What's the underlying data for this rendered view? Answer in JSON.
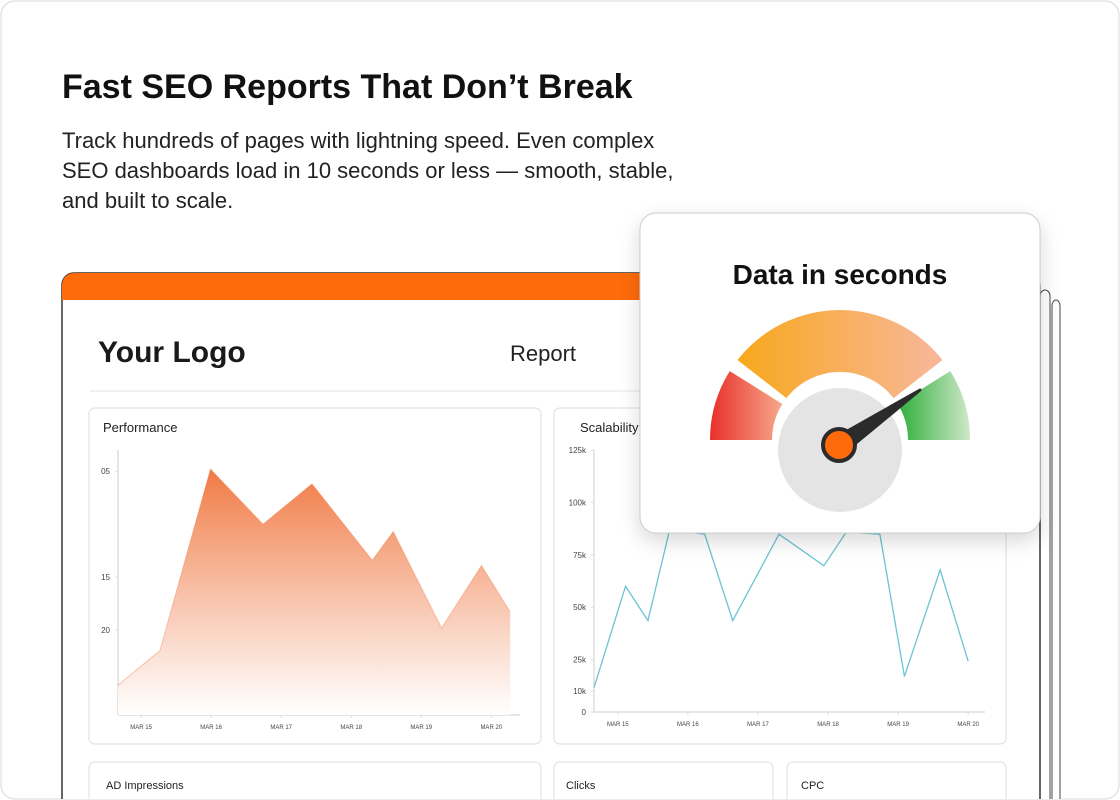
{
  "header": {
    "title": "Fast SEO Reports That Don’t Break",
    "description_lines": [
      "Track hundreds of pages with lightning speed. Even complex",
      "SEO dashboards load in 10 seconds or less — smooth, stable,",
      "and built to scale."
    ]
  },
  "dashboard": {
    "logo": "Your Logo",
    "report": "Report",
    "cards": [
      "AD Impressions",
      "Clicks",
      "CPC"
    ]
  },
  "gauge": {
    "title": "Data in seconds"
  },
  "chart_data": [
    {
      "type": "area",
      "title": "Performance",
      "color": "#f07a45",
      "x": [
        14.67,
        15.27,
        15.99,
        16.74,
        17.44,
        18.3,
        18.6,
        19.29,
        19.86,
        20.27
      ],
      "values": [
        25.2,
        21.9,
        4.8,
        10,
        6.2,
        13.4,
        10.7,
        19.8,
        13.9,
        18.3
      ],
      "xlim": [
        14.67,
        20.41
      ],
      "ylim": [
        3,
        28
      ],
      "y_inverted": true,
      "xticks": [
        {
          "value": 15,
          "label": "MAR 15"
        },
        {
          "value": 16,
          "label": "MAR 16"
        },
        {
          "value": 17,
          "label": "MAR 17"
        },
        {
          "value": 18,
          "label": "MAR 18"
        },
        {
          "value": 19,
          "label": "MAR 19"
        },
        {
          "value": 20,
          "label": "MAR 20"
        }
      ],
      "yticks": [
        {
          "value": 5,
          "label": "05"
        },
        15,
        20
      ]
    },
    {
      "type": "line",
      "title": "Scalability",
      "color": "#6cc3d5",
      "x": [
        14.66,
        15.11,
        15.43,
        15.74,
        16.24,
        16.64,
        17.3,
        17.94,
        18.26,
        18.74,
        19.09,
        19.6,
        20.0
      ],
      "values": [
        11600,
        60000,
        43600,
        87000,
        84800,
        43600,
        84800,
        69800,
        85800,
        84800,
        17000,
        67800,
        24200
      ],
      "xlim": [
        14.66,
        20.24
      ],
      "ylim": [
        0,
        125000
      ],
      "xticks": [
        {
          "value": 15,
          "label": "MAR 15"
        },
        {
          "value": 16,
          "label": "MAR 16"
        },
        {
          "value": 17,
          "label": "MAR 17"
        },
        {
          "value": 18,
          "label": "MAR 18"
        },
        {
          "value": 19,
          "label": "MAR 19"
        },
        {
          "value": 20,
          "label": "MAR 20"
        }
      ],
      "yticks": [
        0,
        {
          "value": 10000,
          "label": "10k"
        },
        {
          "value": 25000,
          "label": "25k"
        },
        {
          "value": 50000,
          "label": "50k"
        },
        {
          "value": 75000,
          "label": "75k"
        },
        {
          "value": 100000,
          "label": "100k"
        },
        {
          "value": 125000,
          "label": "125k"
        }
      ]
    }
  ]
}
